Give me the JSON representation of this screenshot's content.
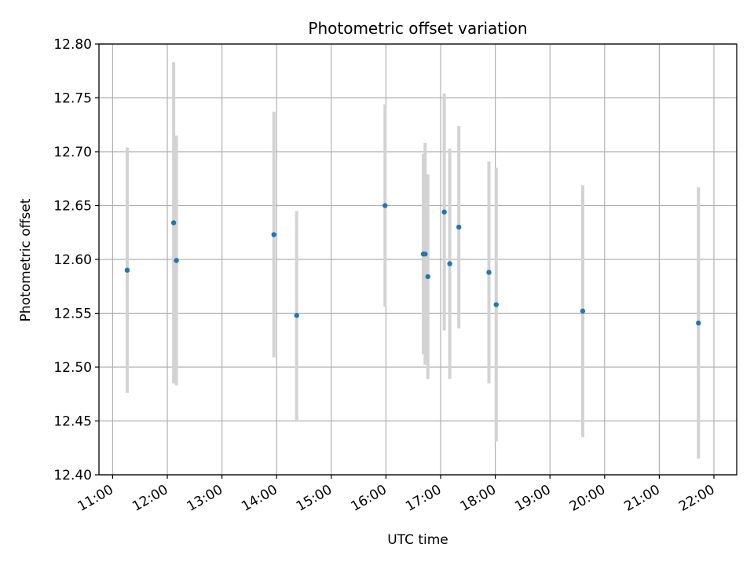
{
  "chart_data": {
    "type": "scatter",
    "title": "Photometric offset variation",
    "xlabel": "UTC time",
    "ylabel": "Photometric offset",
    "xlim": [
      "10:45",
      "22:25"
    ],
    "ylim": [
      12.4,
      12.8
    ],
    "x_ticks": [
      "11:00",
      "12:00",
      "13:00",
      "14:00",
      "15:00",
      "16:00",
      "17:00",
      "18:00",
      "19:00",
      "20:00",
      "21:00",
      "22:00"
    ],
    "y_ticks": [
      "12.40",
      "12.45",
      "12.50",
      "12.55",
      "12.60",
      "12.65",
      "12.70",
      "12.75",
      "12.80"
    ],
    "grid": true,
    "colors": {
      "point": "#1f77b4",
      "errorbar": "#d3d3d3",
      "grid": "#b0b0b0"
    },
    "points": [
      {
        "x": "11:16",
        "y": 12.59,
        "err": 0.114
      },
      {
        "x": "12:07",
        "y": 12.634,
        "err": 0.149
      },
      {
        "x": "12:10",
        "y": 12.599,
        "err": 0.116
      },
      {
        "x": "13:57",
        "y": 12.623,
        "err": 0.114
      },
      {
        "x": "14:22",
        "y": 12.548,
        "err": 0.097
      },
      {
        "x": "15:59",
        "y": 12.65,
        "err": 0.094
      },
      {
        "x": "16:41",
        "y": 12.605,
        "err": 0.093
      },
      {
        "x": "16:43",
        "y": 12.605,
        "err": 0.103
      },
      {
        "x": "16:46",
        "y": 12.584,
        "err": 0.095
      },
      {
        "x": "17:04",
        "y": 12.644,
        "err": 0.11
      },
      {
        "x": "17:10",
        "y": 12.596,
        "err": 0.107
      },
      {
        "x": "17:20",
        "y": 12.63,
        "err": 0.094
      },
      {
        "x": "17:53",
        "y": 12.588,
        "err": 0.103
      },
      {
        "x": "18:01",
        "y": 12.558,
        "err": 0.127
      },
      {
        "x": "19:36",
        "y": 12.552,
        "err": 0.117
      },
      {
        "x": "21:43",
        "y": 12.541,
        "err": 0.126
      }
    ]
  }
}
